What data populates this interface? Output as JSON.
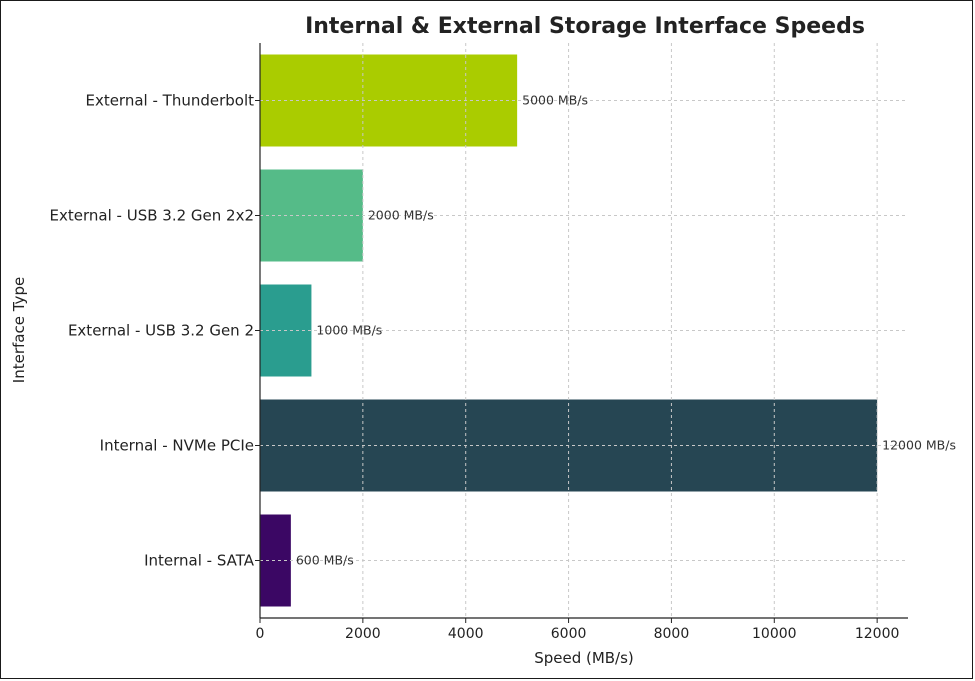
{
  "chart_data": {
    "type": "bar",
    "orientation": "horizontal",
    "title": "Internal & External Storage Interface Speeds",
    "xlabel": "Speed (MB/s)",
    "ylabel": "Interface Type",
    "categories": [
      "External - Thunderbolt",
      "External - USB 3.2 Gen 2x2",
      "External - USB 3.2 Gen 2",
      "Internal - NVMe PCIe",
      "Internal - SATA"
    ],
    "values": [
      5000,
      2000,
      1000,
      12000,
      600
    ],
    "data_labels": [
      "5000 MB/s",
      "2000 MB/s",
      "1000 MB/s",
      "12000 MB/s",
      "600 MB/s"
    ],
    "colors": [
      "#aacc00",
      "#55bb88",
      "#2a9d8f",
      "#264653",
      "#3b0764"
    ],
    "xlim": [
      0,
      12600
    ],
    "xticks": [
      0,
      2000,
      4000,
      6000,
      8000,
      10000,
      12000
    ],
    "grid": true
  }
}
